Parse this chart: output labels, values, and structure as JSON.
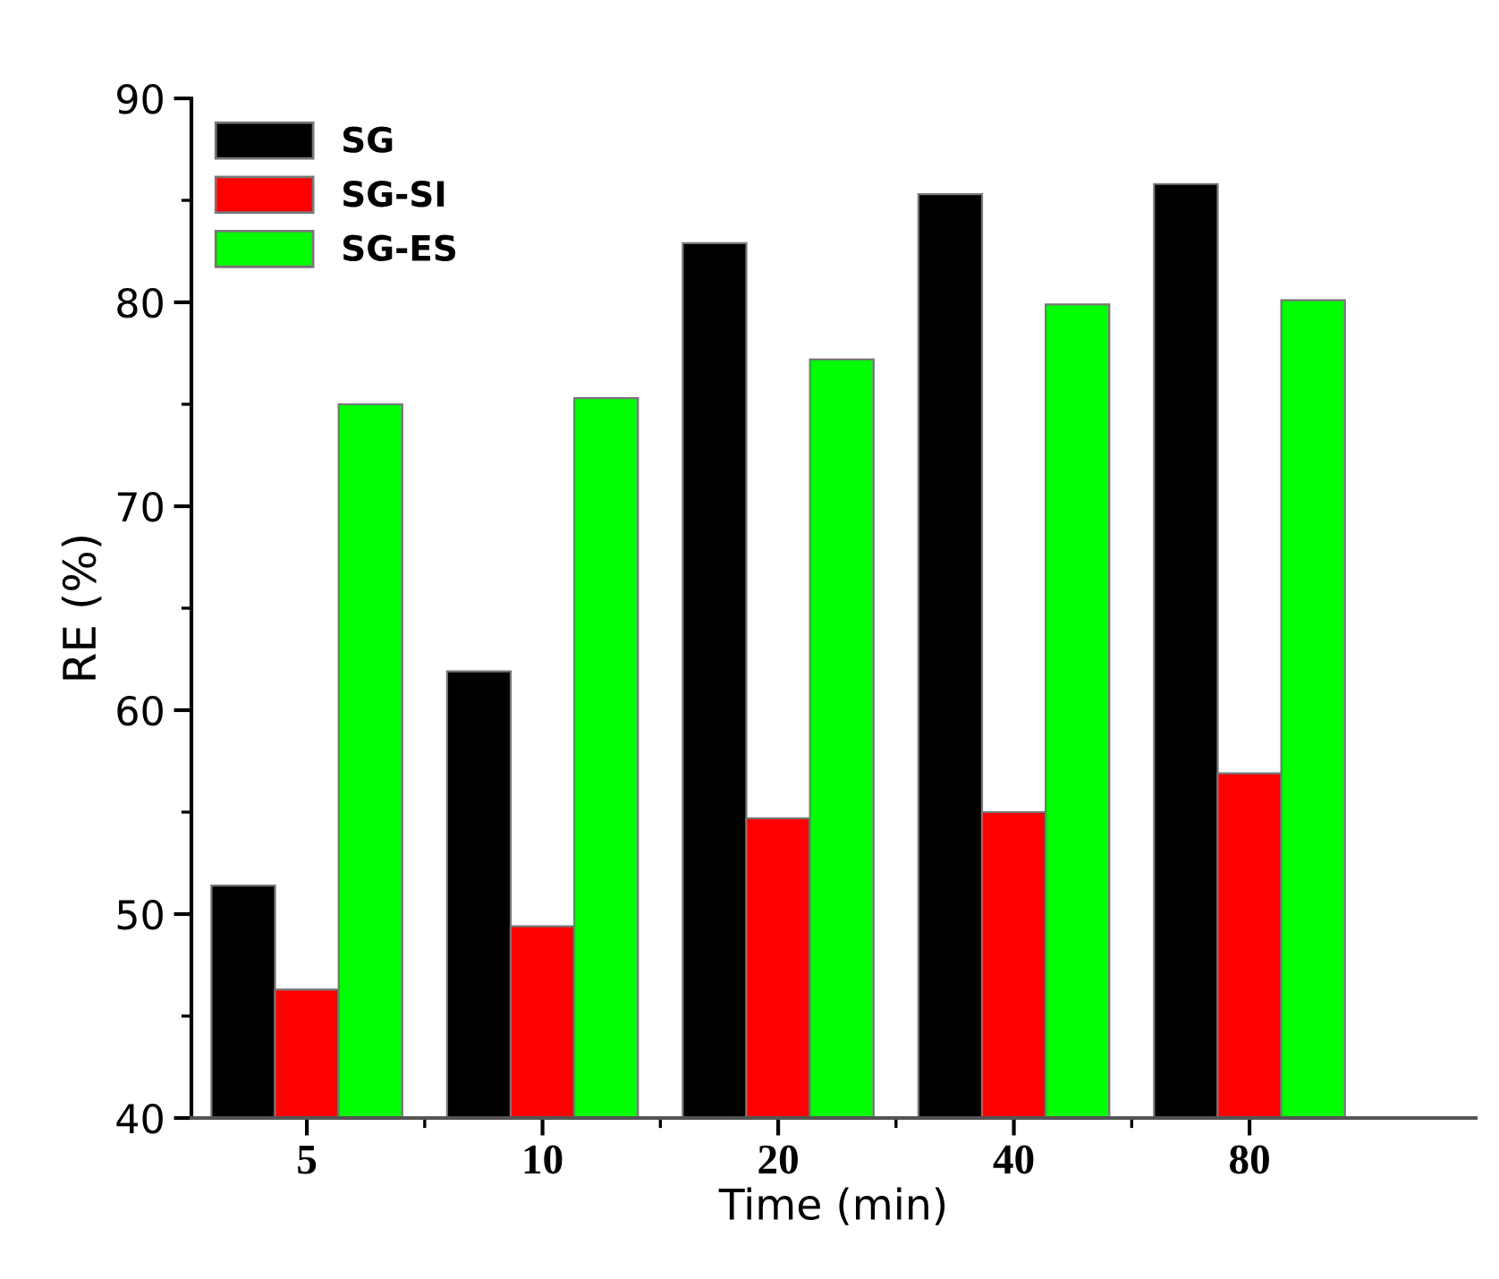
{
  "chart_data": {
    "type": "bar",
    "xlabel": "Time (min)",
    "ylabel": "RE (%)",
    "categories": [
      "5",
      "10",
      "20",
      "40",
      "80"
    ],
    "series": [
      {
        "name": "SG",
        "color": "#000000",
        "values": [
          51.4,
          61.9,
          82.9,
          85.3,
          85.8
        ]
      },
      {
        "name": "SG-SI",
        "color": "#ff0000",
        "values": [
          46.3,
          49.4,
          54.7,
          55.0,
          56.9
        ]
      },
      {
        "name": "SG-ES",
        "color": "#00ff00",
        "values": [
          75.0,
          75.3,
          77.2,
          79.9,
          80.1
        ]
      }
    ],
    "ylim": [
      40,
      90
    ],
    "yticks": [
      40,
      50,
      60,
      70,
      80,
      90
    ],
    "grid": false,
    "legend": "top left"
  }
}
